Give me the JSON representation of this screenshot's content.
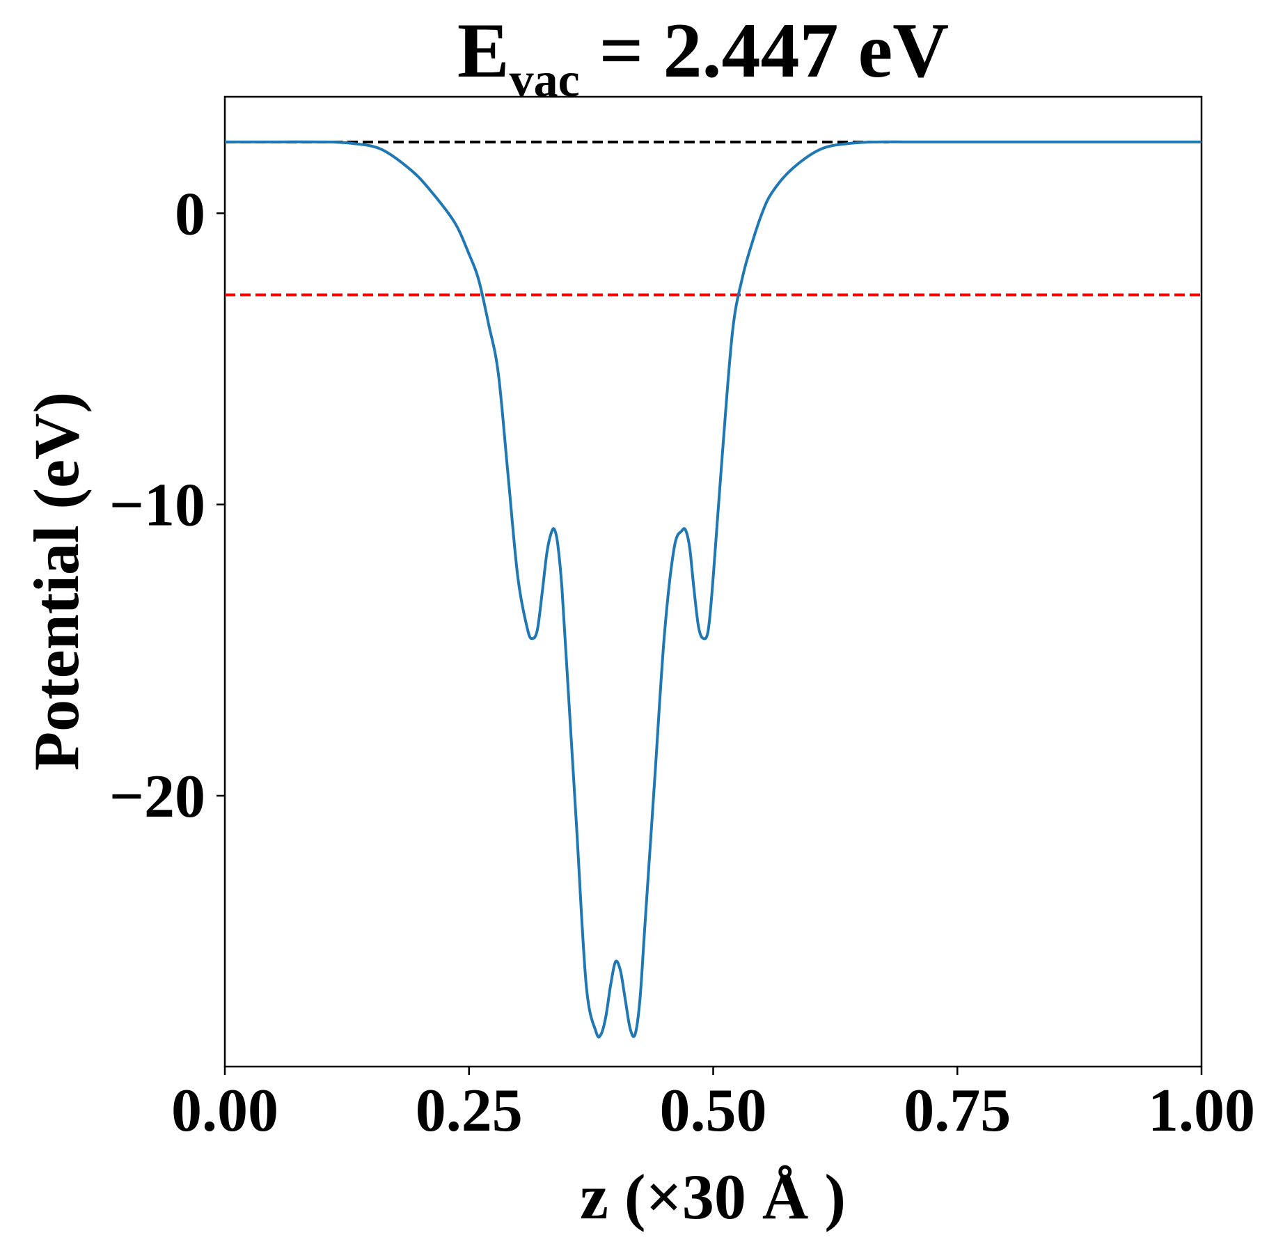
{
  "chart_data": {
    "type": "line",
    "title": {
      "main": "E",
      "subscript": "vac",
      "rest": " = 2.447 eV"
    },
    "xlabel": "z (×30 Å )",
    "ylabel": "Potential (eV)",
    "xlim": [
      0.0,
      1.0
    ],
    "ylim": [
      -29.3,
      4.0
    ],
    "x_ticks": [
      0.0,
      0.25,
      0.5,
      0.75,
      1.0
    ],
    "x_tick_labels": [
      "0.00",
      "0.25",
      "0.50",
      "0.75",
      "1.00"
    ],
    "y_ticks": [
      0,
      -10,
      -20
    ],
    "y_tick_labels": [
      "0",
      "−10",
      "−20"
    ],
    "grid": false,
    "legend": "none",
    "reference_lines": [
      {
        "y": 2.447,
        "x_range": [
          0.0,
          0.68
        ],
        "color": "#000000",
        "style": "dashed"
      },
      {
        "y": -2.8,
        "x_range": [
          0.0,
          1.0
        ],
        "color": "#ff0000",
        "style": "dashed"
      }
    ],
    "series": [
      {
        "color": "#1f77b4",
        "x": [
          0.0,
          0.05,
          0.1,
          0.13,
          0.16,
          0.19,
          0.21,
          0.235,
          0.25,
          0.26,
          0.27,
          0.28,
          0.29,
          0.3,
          0.31,
          0.315,
          0.32,
          0.325,
          0.33,
          0.335,
          0.338,
          0.341,
          0.345,
          0.35,
          0.36,
          0.37,
          0.38,
          0.385,
          0.39,
          0.395,
          0.4,
          0.405,
          0.41,
          0.415,
          0.42,
          0.425,
          0.43,
          0.44,
          0.45,
          0.46,
          0.468,
          0.472,
          0.476,
          0.48,
          0.485,
          0.49,
          0.495,
          0.5,
          0.51,
          0.52,
          0.53,
          0.54,
          0.55,
          0.56,
          0.58,
          0.61,
          0.64,
          0.67,
          0.7,
          0.75,
          0.8,
          0.85,
          0.9,
          0.95,
          1.0
        ],
        "y": [
          2.45,
          2.45,
          2.45,
          2.4,
          2.2,
          1.5,
          0.8,
          -0.3,
          -1.4,
          -2.3,
          -3.8,
          -5.5,
          -9.0,
          -12.5,
          -14.3,
          -14.6,
          -14.3,
          -13.0,
          -11.6,
          -10.9,
          -10.9,
          -11.4,
          -12.8,
          -15.5,
          -21.0,
          -26.5,
          -28.1,
          -28.2,
          -27.6,
          -26.5,
          -25.7,
          -26.0,
          -27.0,
          -28.0,
          -28.2,
          -27.0,
          -24.5,
          -19.5,
          -14.5,
          -11.5,
          -10.9,
          -10.9,
          -11.5,
          -12.8,
          -14.2,
          -14.6,
          -14.3,
          -12.5,
          -8.0,
          -4.0,
          -2.2,
          -1.0,
          0.0,
          0.7,
          1.5,
          2.2,
          2.4,
          2.45,
          2.45,
          2.45,
          2.45,
          2.45,
          2.45,
          2.45,
          2.45
        ]
      }
    ]
  }
}
